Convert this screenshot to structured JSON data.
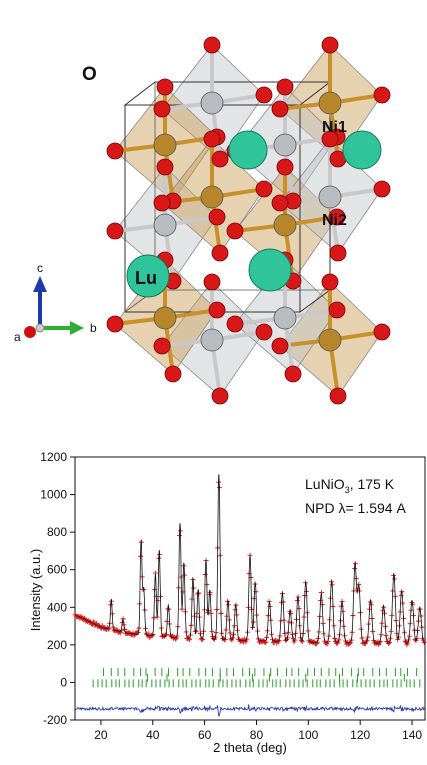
{
  "structure": {
    "atom_labels": {
      "o": "O",
      "ni1": "Ni1",
      "ni2": "Ni2",
      "lu": "Lu"
    },
    "axes": {
      "a": "a",
      "b": "b",
      "c": "c"
    },
    "colors": {
      "oxygen": "#d81818",
      "ni1": "#b8862a",
      "ni2": "#b8bcc0",
      "lu": "#2fc49a",
      "octa_ni1": "#c89a50",
      "octa_ni2": "#c0c4c8",
      "axis_a": "#d01010",
      "axis_b": "#30b030",
      "axis_c": "#1f3aa8"
    }
  },
  "chart_data": {
    "type": "line",
    "annotation": {
      "line1_main": "LuNiO",
      "line1_sub": "3",
      "line1_rest": ", 175 K",
      "line2": "NPD λ= 1.594 A"
    },
    "xlabel": "2 theta (deg)",
    "ylabel": "Intensity (a.u.)",
    "xlim": [
      10,
      145
    ],
    "ylim": [
      -200,
      1200
    ],
    "x_ticks": [
      20,
      40,
      60,
      80,
      100,
      120,
      140
    ],
    "y_ticks": [
      -200,
      0,
      200,
      400,
      600,
      800,
      1000,
      1200
    ],
    "background": [
      [
        10,
        360
      ],
      [
        20,
        295
      ],
      [
        30,
        262
      ],
      [
        40,
        248
      ],
      [
        50,
        238
      ],
      [
        60,
        232
      ],
      [
        70,
        226
      ],
      [
        80,
        222
      ],
      [
        90,
        218
      ],
      [
        100,
        214
      ],
      [
        110,
        212
      ],
      [
        120,
        210
      ],
      [
        130,
        208
      ],
      [
        145,
        205
      ]
    ],
    "peaks": [
      [
        24,
        160
      ],
      [
        28.5,
        70
      ],
      [
        35.5,
        500
      ],
      [
        36.5,
        240
      ],
      [
        41,
        330
      ],
      [
        42.5,
        460
      ],
      [
        46,
        170
      ],
      [
        50.5,
        610
      ],
      [
        52,
        400
      ],
      [
        55.5,
        320
      ],
      [
        57.5,
        260
      ],
      [
        60.5,
        420
      ],
      [
        62,
        260
      ],
      [
        65.5,
        880
      ],
      [
        69,
        210
      ],
      [
        72,
        190
      ],
      [
        77.5,
        450
      ],
      [
        79.5,
        310
      ],
      [
        85,
        210
      ],
      [
        90,
        260
      ],
      [
        93,
        170
      ],
      [
        96,
        240
      ],
      [
        99,
        320
      ],
      [
        105,
        260
      ],
      [
        109,
        330
      ],
      [
        113,
        220
      ],
      [
        118,
        420
      ],
      [
        119.5,
        300
      ],
      [
        124,
        230
      ],
      [
        129,
        200
      ],
      [
        133,
        370
      ],
      [
        136,
        280
      ],
      [
        140,
        230
      ],
      [
        143,
        190
      ]
    ],
    "difference_offset": -140,
    "tick_rows": [
      {
        "name": "",
        "y": 55,
        "color": "#2a9a2a",
        "start": 21,
        "step": 2.6
      },
      {
        "name": "",
        "y": 25,
        "color": "#2a9a2a",
        "positions": [
          38,
          45.5,
          66,
          78.5,
          85,
          99,
          112,
          119,
          137
        ]
      },
      {
        "name": "",
        "y": -5,
        "color": "#2a9a2a",
        "start": 17,
        "step": 1.6
      }
    ],
    "colors": {
      "observed": "#e81a1a",
      "calculated": "#111111",
      "difference": "#2a3aa8",
      "ticks": "#2a9a2a"
    }
  }
}
